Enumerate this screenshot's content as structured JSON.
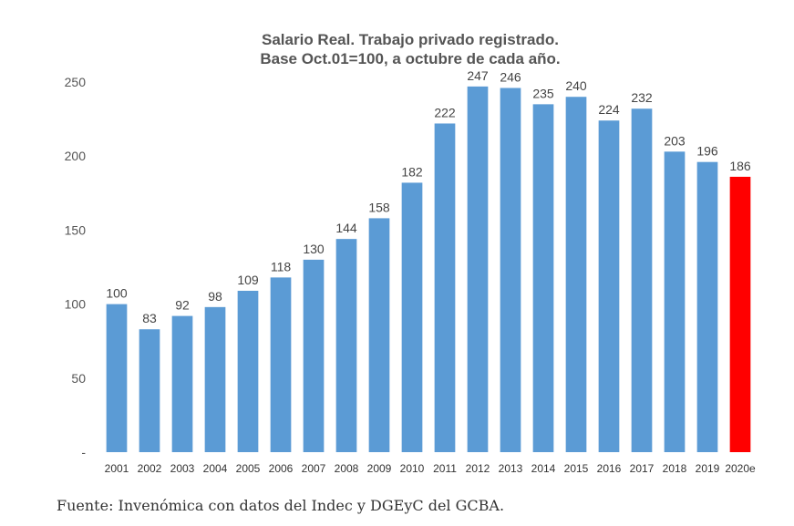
{
  "chart_data": {
    "type": "bar",
    "title": "Salario Real. Trabajo privado registrado.",
    "subtitle": "Base Oct.01=100,  a octubre de cada año.",
    "categories": [
      "2001",
      "2002",
      "2003",
      "2004",
      "2005",
      "2006",
      "2007",
      "2008",
      "2009",
      "2010",
      "2011",
      "2012",
      "2013",
      "2014",
      "2015",
      "2016",
      "2017",
      "2018",
      "2019",
      "2020e"
    ],
    "values": [
      100,
      83,
      92,
      98,
      109,
      118,
      130,
      144,
      158,
      182,
      222,
      247,
      246,
      235,
      240,
      224,
      232,
      203,
      196,
      186
    ],
    "ylim": [
      0,
      250
    ],
    "yticks": [
      {
        "value": 0,
        "label": "-"
      },
      {
        "value": 50,
        "label": "50"
      },
      {
        "value": 100,
        "label": "100"
      },
      {
        "value": 150,
        "label": "150"
      },
      {
        "value": 200,
        "label": "200"
      },
      {
        "value": 250,
        "label": "250"
      }
    ],
    "grid": false,
    "bar_color": "#5B9BD5",
    "highlight_color": "#FF0000",
    "highlight_index": 19
  },
  "source": "Fuente: Invenómica con datos del Indec y DGEyC del GCBA."
}
